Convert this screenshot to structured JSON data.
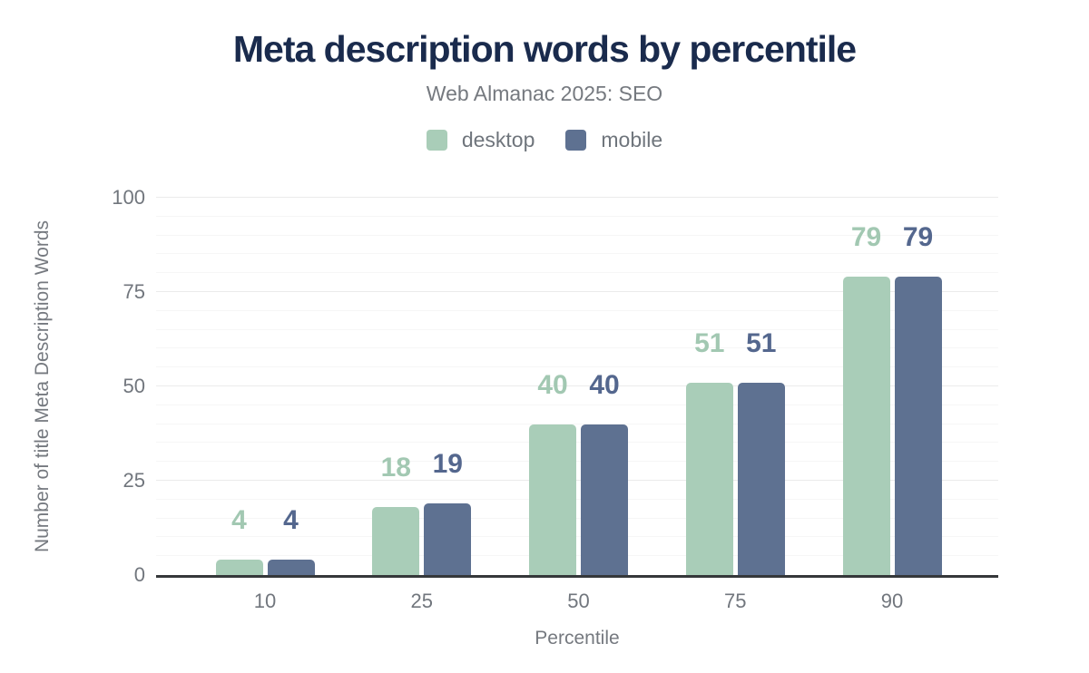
{
  "chart_data": {
    "type": "bar",
    "title": "Meta description words by percentile",
    "subtitle": "Web Almanac 2025: SEO",
    "categories": [
      "10",
      "25",
      "50",
      "75",
      "90"
    ],
    "series": [
      {
        "name": "desktop",
        "color": "#a9cdb8",
        "label_color": "#a2c8b2",
        "values": [
          4,
          18,
          40,
          51,
          79
        ]
      },
      {
        "name": "mobile",
        "color": "#5e7191",
        "label_color": "#54678e",
        "values": [
          4,
          19,
          40,
          51,
          79
        ]
      }
    ],
    "xlabel": "Percentile",
    "ylabel": "Number of title Meta Description Words",
    "ylim": [
      0,
      100
    ],
    "yticks": [
      "0",
      "25",
      "50",
      "75",
      "100"
    ],
    "grid": {
      "minor_step": 5,
      "major_step": 25,
      "horizontal": true
    },
    "legend_position": "top",
    "value_labels": true
  },
  "colors": {
    "title": "#1a2b4d",
    "subtitle": "#75797f",
    "legend_text": "#6f757c",
    "tick_text": "#71767d",
    "axis_line": "#35383a",
    "grid_major": "#ebebeb",
    "grid_minor": "#f6f6f6",
    "background": "#ffffff"
  }
}
